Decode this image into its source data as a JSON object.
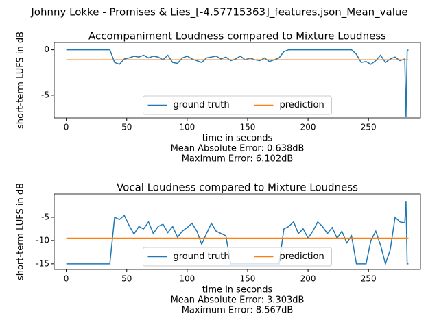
{
  "title": "Johnny Lokke - Promises & Lies_[-4.57715363]_features.json_Mean_value",
  "chart_data": [
    {
      "type": "line",
      "title": "Accompaniment Loudness compared to Mixture Loudness",
      "xlabel": "time in seconds",
      "ylabel": "short-term LUFS in dB",
      "annotations": [
        "Mean Absolute Error: 0.638dB",
        "Maximum Error: 6.102dB"
      ],
      "xlim": [
        -10,
        293
      ],
      "xticks": [
        0,
        50,
        100,
        150,
        200,
        250
      ],
      "ylim": [
        -7.5,
        0.8
      ],
      "yticks": [
        0,
        -5
      ],
      "legend": "lower center",
      "x": [
        0,
        4,
        8,
        12,
        16,
        20,
        24,
        28,
        32,
        36,
        40,
        44,
        48,
        52,
        56,
        60,
        64,
        68,
        72,
        76,
        80,
        84,
        88,
        92,
        96,
        100,
        104,
        108,
        112,
        116,
        120,
        124,
        128,
        132,
        136,
        140,
        144,
        148,
        152,
        156,
        160,
        164,
        168,
        172,
        176,
        180,
        184,
        188,
        192,
        196,
        200,
        204,
        208,
        212,
        216,
        220,
        224,
        228,
        232,
        236,
        240,
        244,
        248,
        252,
        256,
        260,
        264,
        268,
        272,
        276,
        280,
        281,
        282,
        283
      ],
      "series": [
        {
          "name": "ground truth",
          "color": "#1f77b4",
          "values": [
            0,
            0,
            0,
            0,
            0,
            0,
            0,
            0,
            0,
            0,
            -1.4,
            -1.6,
            -1.0,
            -0.9,
            -0.7,
            -0.8,
            -0.6,
            -0.9,
            -0.7,
            -0.8,
            -1.1,
            -0.6,
            -1.4,
            -1.5,
            -0.9,
            -0.7,
            -1.0,
            -1.2,
            -1.4,
            -0.9,
            -0.8,
            -0.7,
            -1.0,
            -0.8,
            -1.2,
            -1.0,
            -0.7,
            -1.1,
            -0.9,
            -1.1,
            -1.2,
            -0.9,
            -1.3,
            -1.1,
            -0.9,
            -0.2,
            0,
            0,
            0,
            0,
            0,
            0,
            0,
            0,
            0,
            0,
            0,
            0,
            0,
            0,
            -0.5,
            -1.4,
            -1.3,
            -1.6,
            -1.2,
            -0.6,
            -1.4,
            -1.0,
            -0.8,
            -1.2,
            -1.0,
            -7.4,
            -0.1,
            0
          ]
        },
        {
          "name": "prediction",
          "color": "#ff7f0e",
          "x": [
            0,
            283
          ],
          "values": [
            -1.1,
            -1.1
          ]
        }
      ]
    },
    {
      "type": "line",
      "title": "Vocal Loudness compared to Mixture Loudness",
      "xlabel": "time in seconds",
      "ylabel": "short-term LUFS in dB",
      "annotations": [
        "Mean Absolute Error: 3.303dB",
        "Maximum Error: 8.567dB"
      ],
      "xlim": [
        -10,
        293
      ],
      "xticks": [
        0,
        50,
        100,
        150,
        200,
        250
      ],
      "ylim": [
        -16.2,
        0
      ],
      "yticks": [
        -5,
        -10,
        -15
      ],
      "legend": "lower center",
      "x": [
        0,
        4,
        8,
        12,
        16,
        20,
        24,
        28,
        32,
        36,
        40,
        44,
        48,
        52,
        56,
        60,
        64,
        68,
        72,
        76,
        80,
        84,
        88,
        92,
        96,
        100,
        104,
        108,
        112,
        116,
        120,
        124,
        128,
        132,
        136,
        140,
        144,
        148,
        152,
        156,
        160,
        164,
        168,
        172,
        176,
        180,
        184,
        188,
        192,
        196,
        200,
        204,
        208,
        212,
        216,
        220,
        224,
        228,
        232,
        236,
        240,
        244,
        248,
        252,
        256,
        260,
        264,
        268,
        272,
        276,
        280,
        281,
        282,
        283
      ],
      "series": [
        {
          "name": "ground truth",
          "color": "#1f77b4",
          "values": [
            -15,
            -15,
            -15,
            -15,
            -15,
            -15,
            -15,
            -15,
            -15,
            -15,
            -5,
            -5.5,
            -4.6,
            -6.8,
            -8.6,
            -7,
            -7.5,
            -6,
            -8.5,
            -7,
            -6.5,
            -8.3,
            -7,
            -9.3,
            -8,
            -7.2,
            -6.3,
            -8,
            -10.8,
            -8.5,
            -6.3,
            -8,
            -8.5,
            -9,
            -15,
            -15,
            -15,
            -15,
            -15,
            -15,
            -15,
            -15,
            -15,
            -15,
            -15,
            -7.5,
            -7,
            -6,
            -8.5,
            -7.5,
            -9.5,
            -8,
            -6,
            -7,
            -8.5,
            -7.2,
            -9.5,
            -8,
            -10.5,
            -9,
            -15,
            -15,
            -15,
            -10,
            -8,
            -11,
            -15,
            -12,
            -5,
            -6,
            -6.2,
            -1.5,
            -15,
            -15
          ]
        },
        {
          "name": "prediction",
          "color": "#ff7f0e",
          "x": [
            0,
            283
          ],
          "values": [
            -9.5,
            -9.5
          ]
        }
      ]
    }
  ]
}
